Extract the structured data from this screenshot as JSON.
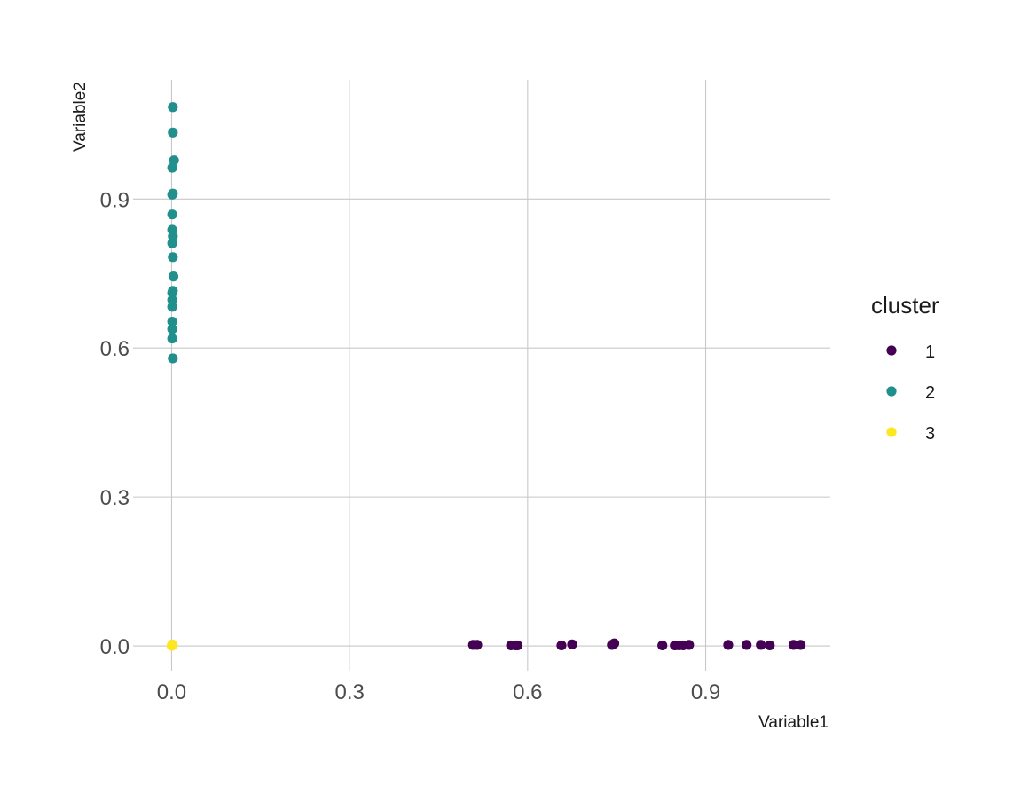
{
  "chart_data": {
    "type": "scatter",
    "title": "",
    "xlabel": "Variable1",
    "ylabel": "Variable2",
    "xlim": [
      -0.065,
      1.11
    ],
    "ylim": [
      -0.05,
      1.14
    ],
    "x_ticks": [
      0.0,
      0.3,
      0.6,
      0.9
    ],
    "y_ticks": [
      0.0,
      0.3,
      0.6,
      0.9
    ],
    "x_tick_labels": [
      "0.0",
      "0.3",
      "0.6",
      "0.9"
    ],
    "y_tick_labels": [
      "0.0",
      "0.3",
      "0.6",
      "0.9"
    ],
    "grid": true,
    "legend": {
      "title": "cluster",
      "position": "right"
    },
    "series": [
      {
        "name": "1",
        "color": "#440154",
        "points": [
          [
            0.508,
            0.002
          ],
          [
            0.515,
            0.002
          ],
          [
            0.572,
            0.001
          ],
          [
            0.58,
            0.001
          ],
          [
            0.583,
            0.001
          ],
          [
            0.657,
            0.001
          ],
          [
            0.675,
            0.003
          ],
          [
            0.742,
            0.002
          ],
          [
            0.745,
            0.004
          ],
          [
            0.746,
            0.005
          ],
          [
            0.827,
            0.001
          ],
          [
            0.848,
            0.001
          ],
          [
            0.855,
            0.001
          ],
          [
            0.862,
            0.001
          ],
          [
            0.872,
            0.002
          ],
          [
            0.938,
            0.002
          ],
          [
            0.969,
            0.002
          ],
          [
            0.993,
            0.002
          ],
          [
            1.008,
            0.001
          ],
          [
            1.048,
            0.002
          ],
          [
            1.06,
            0.002
          ]
        ]
      },
      {
        "name": "2",
        "color": "#21908C",
        "points": [
          [
            0.002,
            1.085
          ],
          [
            0.002,
            1.034
          ],
          [
            0.004,
            0.978
          ],
          [
            0.001,
            0.963
          ],
          [
            0.002,
            0.911
          ],
          [
            0.001,
            0.909
          ],
          [
            0.001,
            0.869
          ],
          [
            0.001,
            0.838
          ],
          [
            0.002,
            0.825
          ],
          [
            0.001,
            0.811
          ],
          [
            0.002,
            0.783
          ],
          [
            0.003,
            0.744
          ],
          [
            0.002,
            0.715
          ],
          [
            0.001,
            0.711
          ],
          [
            0.001,
            0.697
          ],
          [
            0.001,
            0.683
          ],
          [
            0.001,
            0.653
          ],
          [
            0.001,
            0.638
          ],
          [
            0.001,
            0.619
          ],
          [
            0.002,
            0.579
          ]
        ]
      },
      {
        "name": "3",
        "color": "#FDE725",
        "points": [
          [
            0.0,
            0.0
          ],
          [
            0.001,
            0.001
          ],
          [
            0.002,
            0.002
          ],
          [
            0.001,
            0.003
          ]
        ]
      }
    ]
  }
}
